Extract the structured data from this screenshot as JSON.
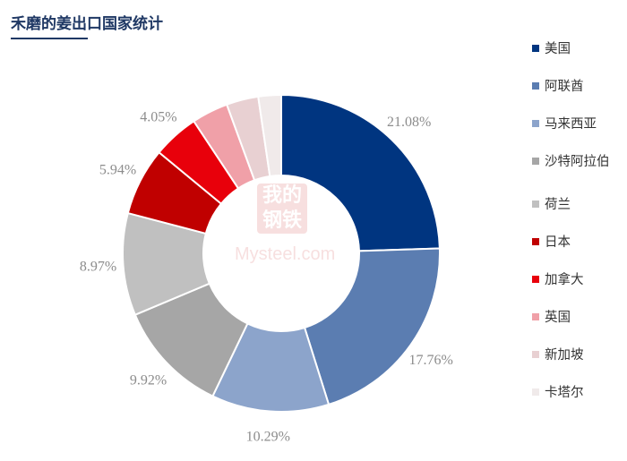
{
  "title": "禾磨的姜出口国家统计",
  "watermark": {
    "top_text": "我的钢铁",
    "bottom_text": "Mysteel.com"
  },
  "chart_data": {
    "type": "pie",
    "style": "donut",
    "title": "禾磨的姜出口国家统计",
    "legend_position": "right",
    "series": [
      {
        "name": "美国",
        "value": 21.08,
        "label": "21.08%",
        "color": "#003580"
      },
      {
        "name": "阿联酋",
        "value": 17.76,
        "label": "17.76%",
        "color": "#5b7db1"
      },
      {
        "name": "马来西亚",
        "value": 10.29,
        "label": "10.29%",
        "color": "#8ca4cb"
      },
      {
        "name": "沙特阿拉伯",
        "value": 9.92,
        "label": "9.92%",
        "color": "#a6a6a6"
      },
      {
        "name": "荷兰",
        "value": 8.97,
        "label": "8.97%",
        "color": "#c0c0c0"
      },
      {
        "name": "日本",
        "value": 5.94,
        "label": "5.94%",
        "color": "#c00000"
      },
      {
        "name": "加拿大",
        "value": 4.05,
        "label": "4.05%",
        "color": "#e8000b"
      },
      {
        "name": "英国",
        "value": 3.2,
        "label": "",
        "color": "#f0a0a8"
      },
      {
        "name": "新加坡",
        "value": 2.8,
        "label": "",
        "color": "#e8d0d2"
      },
      {
        "name": "卡塔尔",
        "value": 2.0,
        "label": "",
        "color": "#f0eaea"
      }
    ]
  }
}
